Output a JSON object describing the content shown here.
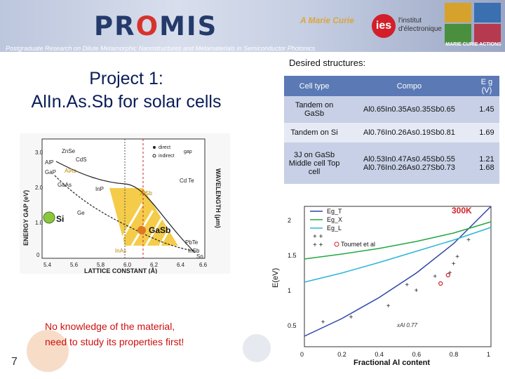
{
  "header": {
    "logo_text_pre": "PR",
    "logo_text_o": "O",
    "logo_text_post": "MIS",
    "marie_text": "A Marie Curie",
    "ies_circle": "ies",
    "ies_line1": "l'institut",
    "ies_line2": "d'électronique",
    "actions_text": "MARIE CURIE ACTIONS",
    "subtitle": "Postgraduate Research on Dilute Metamorphic Nanostructures and Metamaterials in Semiconductor Photonics"
  },
  "slide": {
    "title_line1": "Project 1:",
    "title_line2": "AlIn.As.Sb for solar cells",
    "desired_label": "Desired structures:",
    "note_line1": "No knowledge of the material,",
    "note_line2": "need to study its properties first!",
    "page_number": "7"
  },
  "table": {
    "headers": [
      "Cell type",
      "Compo",
      "E g (V)"
    ],
    "rows": [
      {
        "cell": "Tandem on GaSb",
        "compo": "Al0.65In0.35As0.35Sb0.65",
        "eg": "1.45"
      },
      {
        "cell": "Tandem on Si",
        "compo": "Al0.76In0.26As0.19Sb0.81",
        "eg": "1.69"
      },
      {
        "cell": "3J on GaSb Middle cell Top cell",
        "compo": "Al0.53In0.47As0.45Sb0.55 Al0.76In0.26As0.27Sb0.73",
        "eg": "1.21 1.68"
      }
    ]
  },
  "lattice_chart": {
    "ylabel_left": "ENERGY GAP (eV)",
    "ylabel_right": "WAVELENGTH (μm)",
    "xlabel": "LATTICE CONSTANT (Å)",
    "legend": [
      "direct",
      "indirect",
      "gap"
    ],
    "y_ticks": [
      "3.0",
      "2.0",
      "1.0",
      "0"
    ],
    "x_ticks": [
      "5.4",
      "5.6",
      "5.8",
      "6.0",
      "6.2",
      "6.4",
      "6.6"
    ],
    "materials": [
      "ZnSe",
      "CdS",
      "AlP",
      "GaP",
      "AlAs",
      "AlSb",
      "Cd Te",
      "GaAs",
      "InP",
      "Ge",
      "InAs",
      "PbTe",
      "InSb",
      "Sn"
    ],
    "si_label": "Si",
    "gasb_label": "GaSb"
  },
  "chart_data": {
    "type": "line",
    "title": "300K",
    "xlabel": "Fractional Al content",
    "ylabel": "E(eV)",
    "xlim": [
      0,
      1
    ],
    "ylim": [
      0.2,
      2.2
    ],
    "x_ticks": [
      "0",
      "0.2",
      "0.4",
      "0.6",
      "0.8",
      "1"
    ],
    "y_ticks": [
      "0.5",
      "1",
      "1.5",
      "2"
    ],
    "annotation": "xAl 0.77",
    "legend_placement": "top-left",
    "series": [
      {
        "name": "Eg_T",
        "color": "#2b45a8",
        "x": [
          0,
          0.2,
          0.4,
          0.6,
          0.8,
          1.0
        ],
        "y": [
          0.35,
          0.6,
          0.9,
          1.25,
          1.67,
          2.2
        ]
      },
      {
        "name": "Eg_X",
        "color": "#22a845",
        "x": [
          0,
          0.2,
          0.4,
          0.6,
          0.8,
          1.0
        ],
        "y": [
          1.45,
          1.52,
          1.6,
          1.7,
          1.82,
          1.98
        ]
      },
      {
        "name": "Eg_L",
        "color": "#2bb5d8",
        "x": [
          0,
          0.2,
          0.4,
          0.6,
          0.8,
          1.0
        ],
        "y": [
          1.12,
          1.25,
          1.4,
          1.56,
          1.72,
          1.9
        ]
      },
      {
        "name": "+",
        "color": "#222222",
        "x": [
          0.1,
          0.25,
          0.45,
          0.6,
          0.78,
          0.82,
          0.88
        ],
        "y": [
          0.55,
          0.62,
          0.78,
          1.0,
          1.25,
          1.48,
          1.72
        ]
      },
      {
        "name": "+",
        "color": "#222222",
        "x": [
          0.55,
          0.7,
          0.8
        ],
        "y": [
          1.08,
          1.2,
          1.38
        ]
      },
      {
        "name": "Toumet et al",
        "color": "#d2232a",
        "x": [
          0.73,
          0.77
        ],
        "y": [
          1.1,
          1.22
        ]
      }
    ]
  }
}
